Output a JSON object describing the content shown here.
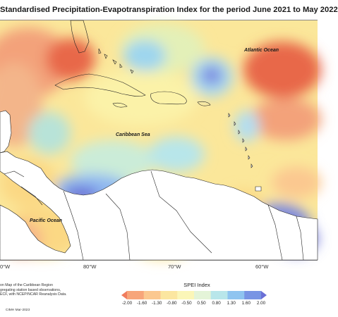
{
  "title": "Standardised Precipitation-Evapotranspiration Index for the period June 2021 to May 2022",
  "map": {
    "labels": {
      "atlantic": "Atlantic Ocean",
      "caribbean": "Caribbean Sea",
      "pacific": "Pacific Ocean"
    },
    "longitude_ticks": [
      "0°W",
      "80°W",
      "70°W",
      "60°W"
    ],
    "colors": {
      "very_dry": "#e8684a",
      "dry": "#f7a57a",
      "moderately_dry": "#fbd884",
      "near_normal": "#fbf6a8",
      "moderately_wet": "#a8e3e8",
      "wet": "#8fb8f0",
      "very_wet": "#6b71d8",
      "land": "#ffffff"
    }
  },
  "credits": {
    "line1": "on Map of the Caribbean Region",
    "line2": "gregating station based observations,",
    "line3": "ECF, with NCEP/NCAR Reanalysis Data.",
    "footer": "CIMH Mar-2023"
  },
  "legend": {
    "title": "SPEI Index",
    "ticks": [
      "-2.00",
      "-1.60",
      "-1.30",
      "-0.80",
      "-0.50",
      "0.50",
      "0.80",
      "1.30",
      "1.60",
      "2.00"
    ],
    "bins": [
      "#f07c5e",
      "#f7a57a",
      "#fbc890",
      "#fbe6a0",
      "#fbf6b8",
      "#e4f4d8",
      "#b8e6ea",
      "#8fc4f0",
      "#7894e4",
      "#6a6fd6"
    ]
  }
}
